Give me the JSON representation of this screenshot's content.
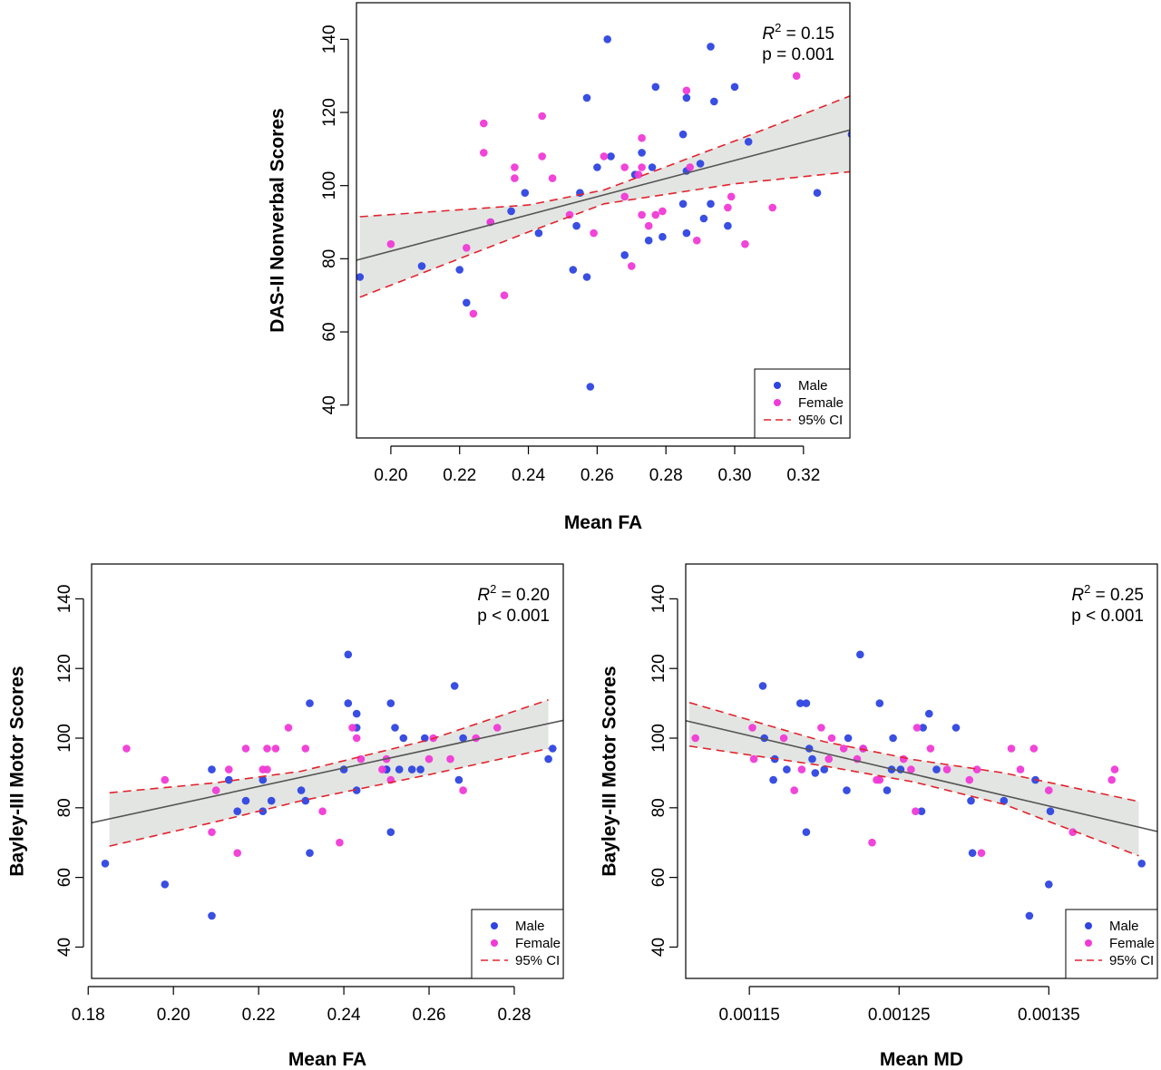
{
  "colors": {
    "male": "#2e44e0",
    "female": "#f03ad6",
    "ci": "#e2232e",
    "band": "#e3e5e2",
    "fit": "#555555"
  },
  "chart_data": [
    {
      "type": "scatter",
      "id": "top",
      "xlabel": "Mean FA",
      "ylabel": "DAS-II Nonverbal Scores",
      "xlim": [
        0.19,
        0.3335
      ],
      "ylim": [
        31,
        150
      ],
      "xticks": [
        0.2,
        0.22,
        0.24,
        0.26,
        0.28,
        0.3,
        0.32
      ],
      "xtick_labels": [
        "0.20",
        "0.22",
        "0.24",
        "0.26",
        "0.28",
        "0.30",
        "0.32"
      ],
      "yticks": [
        40,
        60,
        80,
        100,
        120,
        140
      ],
      "ytick_labels": [
        "40",
        "60",
        "80",
        "100",
        "120",
        "140"
      ],
      "stat_label": "R",
      "stat_sup": "2",
      "stat_value": " = 0.15",
      "p_text": "p = 0.001",
      "legend": [
        "Male",
        "Female",
        "95% CI"
      ],
      "fit": {
        "x": [
          0.19,
          0.3335
        ],
        "y": [
          79.6,
          115.2
        ]
      },
      "ci_lower": {
        "x": [
          0.191,
          0.24,
          0.262,
          0.3,
          0.3335
        ],
        "y": [
          69.5,
          87.3,
          95.0,
          100.5,
          103.8
        ]
      },
      "ci_upper": {
        "x": [
          0.191,
          0.24,
          0.262,
          0.3,
          0.3335
        ],
        "y": [
          91.5,
          94.7,
          98.8,
          112.2,
          124.5
        ]
      },
      "series": [
        {
          "name": "Male",
          "points": [
            [
              0.191,
              75
            ],
            [
              0.209,
              78
            ],
            [
              0.22,
              77
            ],
            [
              0.222,
              68
            ],
            [
              0.229,
              90
            ],
            [
              0.235,
              93
            ],
            [
              0.239,
              98
            ],
            [
              0.243,
              87
            ],
            [
              0.253,
              77
            ],
            [
              0.254,
              89
            ],
            [
              0.255,
              98
            ],
            [
              0.257,
              75
            ],
            [
              0.257,
              124
            ],
            [
              0.258,
              45
            ],
            [
              0.26,
              105
            ],
            [
              0.263,
              140
            ],
            [
              0.264,
              108
            ],
            [
              0.268,
              81
            ],
            [
              0.271,
              103
            ],
            [
              0.273,
              109
            ],
            [
              0.275,
              85
            ],
            [
              0.276,
              105
            ],
            [
              0.277,
              127
            ],
            [
              0.279,
              86
            ],
            [
              0.285,
              95
            ],
            [
              0.285,
              114
            ],
            [
              0.286,
              87
            ],
            [
              0.286,
              124
            ],
            [
              0.286,
              104
            ],
            [
              0.29,
              106
            ],
            [
              0.291,
              91
            ],
            [
              0.293,
              95
            ],
            [
              0.293,
              138
            ],
            [
              0.294,
              123
            ],
            [
              0.298,
              89
            ],
            [
              0.3,
              127
            ],
            [
              0.304,
              112
            ],
            [
              0.324,
              98
            ],
            [
              0.334,
              114
            ]
          ]
        },
        {
          "name": "Female",
          "points": [
            [
              0.2,
              84
            ],
            [
              0.222,
              83
            ],
            [
              0.224,
              65
            ],
            [
              0.227,
              117
            ],
            [
              0.227,
              109
            ],
            [
              0.229,
              90
            ],
            [
              0.233,
              70
            ],
            [
              0.236,
              105
            ],
            [
              0.236,
              102
            ],
            [
              0.244,
              119
            ],
            [
              0.244,
              108
            ],
            [
              0.247,
              102
            ],
            [
              0.252,
              92
            ],
            [
              0.259,
              87
            ],
            [
              0.262,
              108
            ],
            [
              0.268,
              97
            ],
            [
              0.268,
              105
            ],
            [
              0.27,
              78
            ],
            [
              0.272,
              103
            ],
            [
              0.273,
              113
            ],
            [
              0.273,
              105
            ],
            [
              0.273,
              92
            ],
            [
              0.275,
              89
            ],
            [
              0.277,
              92
            ],
            [
              0.279,
              93
            ],
            [
              0.286,
              126
            ],
            [
              0.287,
              105
            ],
            [
              0.289,
              85
            ],
            [
              0.298,
              94
            ],
            [
              0.299,
              97
            ],
            [
              0.303,
              84
            ],
            [
              0.311,
              94
            ],
            [
              0.318,
              130
            ]
          ]
        }
      ]
    },
    {
      "type": "scatter",
      "id": "bottom-left",
      "xlabel": "Mean FA",
      "ylabel": "Bayley-III Motor Scores",
      "xlim": [
        0.1808,
        0.2915
      ],
      "ylim": [
        31,
        150
      ],
      "xticks": [
        0.18,
        0.2,
        0.22,
        0.24,
        0.26,
        0.28
      ],
      "xtick_labels": [
        "0.18",
        "0.20",
        "0.22",
        "0.24",
        "0.26",
        "0.28"
      ],
      "yticks": [
        40,
        60,
        80,
        100,
        120,
        140
      ],
      "ytick_labels": [
        "40",
        "60",
        "80",
        "100",
        "120",
        "140"
      ],
      "stat_label": "R",
      "stat_sup": "2",
      "stat_value": " = 0.20",
      "p_text": "p < 0.001",
      "legend": [
        "Male",
        "Female",
        "95% CI"
      ],
      "fit": {
        "x": [
          0.1808,
          0.2915
        ],
        "y": [
          75.7,
          105.1
        ]
      },
      "ci_lower": {
        "x": [
          0.185,
          0.21,
          0.23,
          0.26,
          0.288
        ],
        "y": [
          69.0,
          76.0,
          82.0,
          89.5,
          97.0
        ]
      },
      "ci_upper": {
        "x": [
          0.185,
          0.21,
          0.23,
          0.26,
          0.288
        ],
        "y": [
          84.3,
          87.2,
          90.5,
          99.5,
          111.0
        ]
      },
      "series": [
        {
          "name": "Male",
          "points": [
            [
              0.184,
              64
            ],
            [
              0.198,
              58
            ],
            [
              0.209,
              91
            ],
            [
              0.209,
              49
            ],
            [
              0.213,
              88
            ],
            [
              0.215,
              79
            ],
            [
              0.217,
              82
            ],
            [
              0.221,
              79
            ],
            [
              0.221,
              88
            ],
            [
              0.223,
              82
            ],
            [
              0.23,
              85
            ],
            [
              0.231,
              82
            ],
            [
              0.232,
              110
            ],
            [
              0.232,
              67
            ],
            [
              0.24,
              91
            ],
            [
              0.241,
              110
            ],
            [
              0.241,
              124
            ],
            [
              0.243,
              107
            ],
            [
              0.243,
              103
            ],
            [
              0.243,
              85
            ],
            [
              0.25,
              91
            ],
            [
              0.25,
              91
            ],
            [
              0.251,
              73
            ],
            [
              0.251,
              110
            ],
            [
              0.252,
              103
            ],
            [
              0.253,
              91
            ],
            [
              0.254,
              100
            ],
            [
              0.256,
              91
            ],
            [
              0.258,
              91
            ],
            [
              0.259,
              100
            ],
            [
              0.266,
              115
            ],
            [
              0.267,
              88
            ],
            [
              0.268,
              100
            ],
            [
              0.288,
              94
            ],
            [
              0.289,
              97
            ]
          ]
        },
        {
          "name": "Female",
          "points": [
            [
              0.189,
              97
            ],
            [
              0.198,
              88
            ],
            [
              0.209,
              73
            ],
            [
              0.21,
              85
            ],
            [
              0.213,
              91
            ],
            [
              0.215,
              67
            ],
            [
              0.217,
              97
            ],
            [
              0.221,
              91
            ],
            [
              0.222,
              97
            ],
            [
              0.222,
              91
            ],
            [
              0.224,
              97
            ],
            [
              0.227,
              103
            ],
            [
              0.231,
              97
            ],
            [
              0.235,
              79
            ],
            [
              0.239,
              70
            ],
            [
              0.242,
              103
            ],
            [
              0.243,
              100
            ],
            [
              0.244,
              94
            ],
            [
              0.249,
              91
            ],
            [
              0.25,
              94
            ],
            [
              0.251,
              88
            ],
            [
              0.26,
              94
            ],
            [
              0.261,
              100
            ],
            [
              0.265,
              94
            ],
            [
              0.268,
              85
            ],
            [
              0.271,
              100
            ],
            [
              0.276,
              103
            ]
          ]
        }
      ]
    },
    {
      "type": "scatter",
      "id": "bottom-right",
      "xlabel": "Mean MD",
      "ylabel": "Bayley-III Motor Scores",
      "xlim": [
        0.0011075,
        0.0014225
      ],
      "ylim": [
        31,
        150
      ],
      "xticks": [
        0.00115,
        0.00125,
        0.00135
      ],
      "xtick_labels": [
        "0.00115",
        "0.00125",
        "0.00135"
      ],
      "yticks": [
        40,
        60,
        80,
        100,
        120,
        140
      ],
      "ytick_labels": [
        "40",
        "60",
        "80",
        "100",
        "120",
        "140"
      ],
      "stat_label": "R",
      "stat_sup": "2",
      "stat_value": " = 0.25",
      "p_text": "p < 0.001",
      "legend": [
        "Male",
        "Female",
        "95% CI"
      ],
      "fit": {
        "x": [
          0.0011075,
          0.0014225
        ],
        "y": [
          105.0,
          73.2
        ]
      },
      "ci_lower": {
        "x": [
          0.00111,
          0.0012,
          0.00126,
          0.00132,
          0.00141
        ],
        "y": [
          97.7,
          92.0,
          87.4,
          81.0,
          66.2
        ]
      },
      "ci_upper": {
        "x": [
          0.00111,
          0.0012,
          0.00126,
          0.00132,
          0.00141
        ],
        "y": [
          110.2,
          99.0,
          93.8,
          90.0,
          81.8
        ]
      },
      "series": [
        {
          "name": "Male",
          "points": [
            [
              0.001159,
              115
            ],
            [
              0.00116,
              100
            ],
            [
              0.001166,
              88
            ],
            [
              0.001167,
              94
            ],
            [
              0.001175,
              91
            ],
            [
              0.001184,
              110
            ],
            [
              0.001188,
              110
            ],
            [
              0.001188,
              73
            ],
            [
              0.00119,
              97
            ],
            [
              0.001192,
              94
            ],
            [
              0.001194,
              90
            ],
            [
              0.0012,
              91
            ],
            [
              0.001215,
              85
            ],
            [
              0.001216,
              100
            ],
            [
              0.001224,
              124
            ],
            [
              0.001226,
              97
            ],
            [
              0.001237,
              110
            ],
            [
              0.001242,
              85
            ],
            [
              0.001245,
              91
            ],
            [
              0.001246,
              100
            ],
            [
              0.001251,
              91
            ],
            [
              0.001265,
              79
            ],
            [
              0.001266,
              103
            ],
            [
              0.00127,
              107
            ],
            [
              0.001275,
              91
            ],
            [
              0.001288,
              103
            ],
            [
              0.001298,
              82
            ],
            [
              0.001299,
              67
            ],
            [
              0.00132,
              82
            ],
            [
              0.001337,
              49
            ],
            [
              0.001341,
              88
            ],
            [
              0.00135,
              58
            ],
            [
              0.001351,
              79
            ],
            [
              0.001412,
              64
            ]
          ]
        },
        {
          "name": "Female",
          "points": [
            [
              0.001114,
              100
            ],
            [
              0.001152,
              103
            ],
            [
              0.001153,
              94
            ],
            [
              0.001173,
              100
            ],
            [
              0.00118,
              85
            ],
            [
              0.001185,
              91
            ],
            [
              0.001198,
              103
            ],
            [
              0.001203,
              94
            ],
            [
              0.001205,
              100
            ],
            [
              0.001213,
              97
            ],
            [
              0.001222,
              94
            ],
            [
              0.001226,
              97
            ],
            [
              0.001232,
              70
            ],
            [
              0.001235,
              88
            ],
            [
              0.001237,
              88
            ],
            [
              0.001253,
              94
            ],
            [
              0.001258,
              91
            ],
            [
              0.001261,
              79
            ],
            [
              0.001262,
              103
            ],
            [
              0.001271,
              97
            ],
            [
              0.001282,
              91
            ],
            [
              0.001297,
              88
            ],
            [
              0.001302,
              91
            ],
            [
              0.001305,
              67
            ],
            [
              0.001325,
              97
            ],
            [
              0.001331,
              91
            ],
            [
              0.00134,
              97
            ],
            [
              0.00135,
              85
            ],
            [
              0.001366,
              73
            ],
            [
              0.001392,
              88
            ],
            [
              0.001394,
              91
            ]
          ]
        }
      ]
    }
  ]
}
